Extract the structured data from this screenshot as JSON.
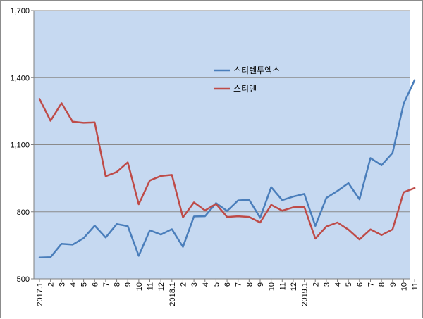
{
  "chart_data": {
    "type": "line",
    "title": "",
    "xlabel": "",
    "ylabel": "",
    "ylim": [
      500,
      1700
    ],
    "yticks": [
      500,
      800,
      1100,
      1400,
      1700
    ],
    "ytick_labels": [
      "500",
      "800",
      "1,100",
      "1,400",
      "1,700"
    ],
    "grid": "horizontal",
    "legend_position": "top-center",
    "plot_background": "#c6d9f1",
    "x": [
      "2017.1",
      "2",
      "3",
      "4",
      "5",
      "6",
      "7",
      "8",
      "9",
      "10",
      "11",
      "12",
      "2018.1",
      "2",
      "3",
      "4",
      "5",
      "6",
      "7",
      "8",
      "9",
      "10",
      "11",
      "12",
      "2019.1",
      "2",
      "3",
      "4",
      "5",
      "6",
      "7",
      "8",
      "9",
      "10",
      "11"
    ],
    "series": [
      {
        "name": "스티렌투엑스",
        "color": "#4a7ebb",
        "values": [
          595,
          597,
          657,
          653,
          682,
          738,
          685,
          745,
          736,
          603,
          717,
          698,
          722,
          643,
          779,
          780,
          839,
          804,
          851,
          854,
          773,
          910,
          852,
          868,
          880,
          737,
          862,
          893,
          928,
          856,
          1040,
          1008,
          1063,
          1283,
          1389
        ]
      },
      {
        "name": "스티렌",
        "color": "#be4b48",
        "values": [
          1305,
          1207,
          1286,
          1203,
          1198,
          1200,
          959,
          978,
          1021,
          834,
          940,
          960,
          965,
          775,
          842,
          806,
          835,
          777,
          780,
          777,
          752,
          831,
          805,
          820,
          822,
          680,
          734,
          752,
          720,
          676,
          721,
          696,
          721,
          887,
          906
        ]
      }
    ]
  }
}
